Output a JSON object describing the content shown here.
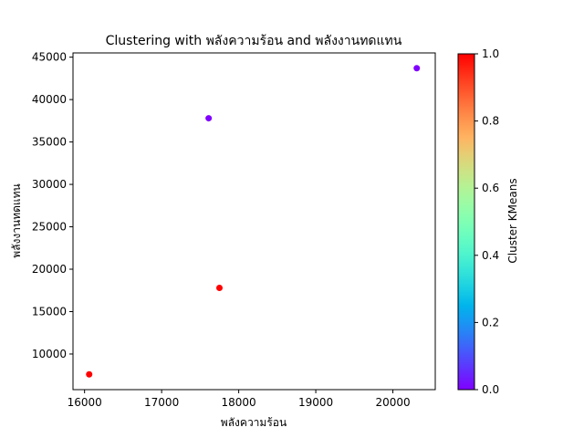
{
  "chart_data": {
    "type": "scatter",
    "title": "Clustering with พลังความร้อน and พลังงานทดแทน",
    "xlabel": "พลังความร้อน",
    "ylabel": "พลังงานทดแทน",
    "xlim": [
      15850,
      20550
    ],
    "ylim": [
      5800,
      45500
    ],
    "x_ticks": [
      16000,
      17000,
      18000,
      19000,
      20000
    ],
    "y_ticks": [
      10000,
      15000,
      20000,
      25000,
      30000,
      35000,
      40000,
      45000
    ],
    "points": [
      {
        "x": 16060,
        "y": 7600,
        "cluster": 1
      },
      {
        "x": 17610,
        "y": 37800,
        "cluster": 0
      },
      {
        "x": 17750,
        "y": 17800,
        "cluster": 1
      },
      {
        "x": 20310,
        "y": 43700,
        "cluster": 0
      }
    ],
    "colorbar": {
      "label": "Cluster KMeans",
      "range": [
        0,
        1
      ],
      "ticks": [
        0.0,
        0.2,
        0.4,
        0.6,
        0.8,
        1.0
      ],
      "tick_labels": [
        "0.0",
        "0.2",
        "0.4",
        "0.6",
        "0.8",
        "1.0"
      ],
      "colormap": "rainbow",
      "colors": {
        "low": "#8000ff",
        "high": "#ff0000"
      }
    },
    "grid": false
  }
}
